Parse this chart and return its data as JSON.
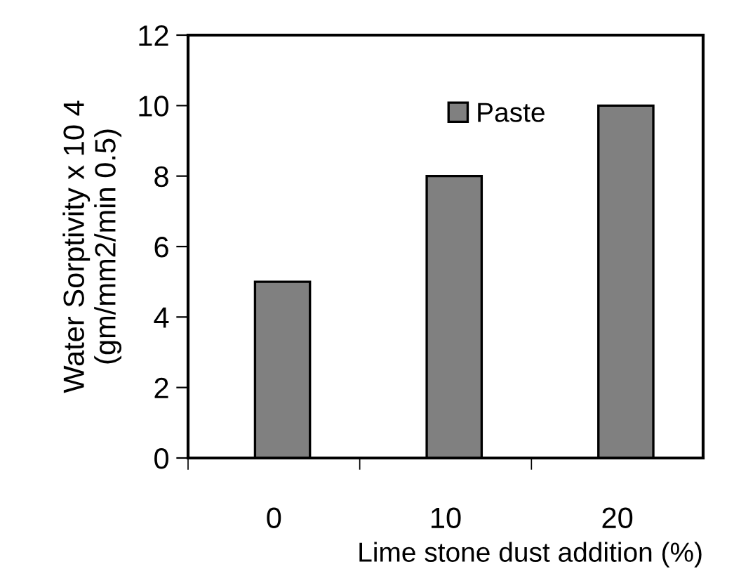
{
  "chart_data": {
    "type": "bar",
    "xlabel": "Lime stone dust addition (%)",
    "ylabel": "Water Sorptivity x 10 4\n(gm/mm2/min 0.5)",
    "categories": [
      "0",
      "10",
      "20"
    ],
    "series": [
      {
        "name": "Paste",
        "color": "#808080",
        "values": [
          5,
          8,
          10
        ]
      }
    ],
    "ylim": [
      0,
      12
    ],
    "yticks": [
      0,
      2,
      4,
      6,
      8,
      10,
      12
    ],
    "grid": false,
    "legend": "top"
  }
}
